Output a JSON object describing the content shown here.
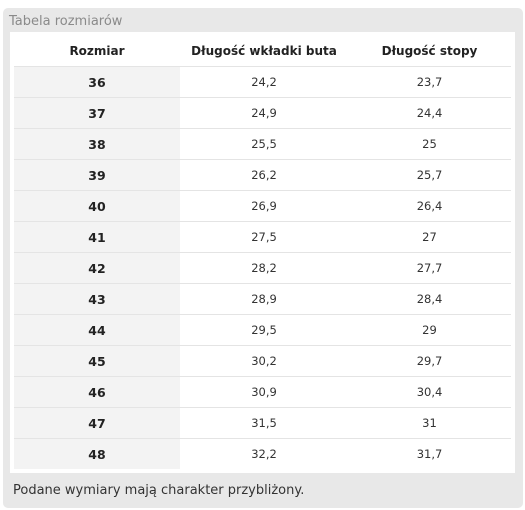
{
  "panel": {
    "title": "Tabela rozmiarów",
    "note": "Podane wymiary mają charakter przybliżony."
  },
  "table": {
    "headers": [
      "Rozmiar",
      "Długość wkładki buta",
      "Długość stopy"
    ],
    "rows": [
      [
        "36",
        "24,2",
        "23,7"
      ],
      [
        "37",
        "24,9",
        "24,4"
      ],
      [
        "38",
        "25,5",
        "25"
      ],
      [
        "39",
        "26,2",
        "25,7"
      ],
      [
        "40",
        "26,9",
        "26,4"
      ],
      [
        "41",
        "27,5",
        "27"
      ],
      [
        "42",
        "28,2",
        "27,7"
      ],
      [
        "43",
        "28,9",
        "28,4"
      ],
      [
        "44",
        "29,5",
        "29"
      ],
      [
        "45",
        "30,2",
        "29,7"
      ],
      [
        "46",
        "30,9",
        "30,4"
      ],
      [
        "47",
        "31,5",
        "31"
      ],
      [
        "48",
        "32,2",
        "31,7"
      ]
    ]
  },
  "colors": {
    "panel_bg": "#e8e8e8",
    "size_col_bg": "#f3f3f3",
    "title_text": "#8a8a8a"
  }
}
